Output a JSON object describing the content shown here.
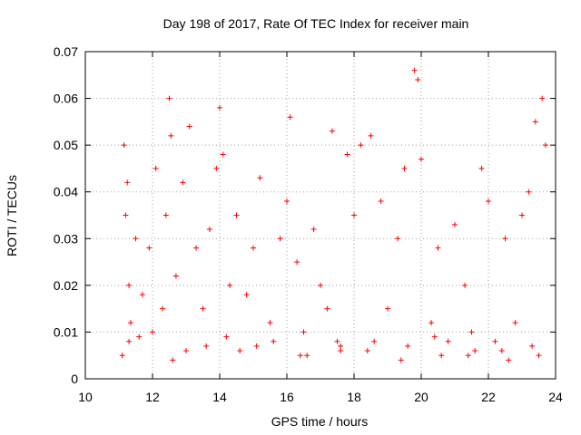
{
  "chart_data": {
    "type": "scatter",
    "title": "Day 198 of 2017, Rate Of TEC Index for receiver main",
    "xlabel": "GPS time / hours",
    "ylabel": "ROTI / TECUs",
    "xlim": [
      10,
      24
    ],
    "ylim": [
      0,
      0.07
    ],
    "x_ticks": [
      "10",
      "12",
      "14",
      "16",
      "18",
      "20",
      "22",
      "24"
    ],
    "y_ticks": [
      "0",
      "0.01",
      "0.02",
      "0.03",
      "0.04",
      "0.05",
      "0.06",
      "0.07"
    ],
    "grid": true,
    "marker": "plus",
    "series": [
      {
        "name": "ROTI",
        "color": "#ff0000",
        "x": [
          11.1,
          11.15,
          11.2,
          11.25,
          11.3,
          11.35,
          11.5,
          11.7,
          11.9,
          12.1,
          12.3,
          12.4,
          12.5,
          12.55,
          12.7,
          12.9,
          13.1,
          13.3,
          13.5,
          13.7,
          13.9,
          14.0,
          14.1,
          14.3,
          14.5,
          14.8,
          15.0,
          15.2,
          15.5,
          15.8,
          16.0,
          16.1,
          16.3,
          16.5,
          16.8,
          17.0,
          17.2,
          17.35,
          17.5,
          17.8,
          18.0,
          18.2,
          18.5,
          18.8,
          19.0,
          19.3,
          19.5,
          19.8,
          19.9,
          20.0,
          20.3,
          20.5,
          20.8,
          21.0,
          21.3,
          21.5,
          21.8,
          22.0,
          22.2,
          22.5,
          22.8,
          23.0,
          23.2,
          23.4,
          23.6,
          23.7,
          11.3,
          12.0,
          13.0,
          14.2,
          15.1,
          16.4,
          17.6,
          18.6,
          19.6,
          20.6,
          21.6,
          22.6,
          23.5,
          11.6,
          12.6,
          13.6,
          14.6,
          15.6,
          16.6,
          17.6,
          18.4,
          19.4,
          20.4,
          21.4,
          22.4,
          23.3
        ],
        "y": [
          0.005,
          0.05,
          0.035,
          0.042,
          0.02,
          0.012,
          0.03,
          0.018,
          0.028,
          0.045,
          0.015,
          0.035,
          0.06,
          0.052,
          0.022,
          0.042,
          0.054,
          0.028,
          0.015,
          0.032,
          0.045,
          0.058,
          0.048,
          0.02,
          0.035,
          0.018,
          0.028,
          0.043,
          0.012,
          0.03,
          0.038,
          0.056,
          0.025,
          0.01,
          0.032,
          0.02,
          0.015,
          0.053,
          0.008,
          0.048,
          0.035,
          0.05,
          0.052,
          0.038,
          0.015,
          0.03,
          0.045,
          0.066,
          0.064,
          0.047,
          0.012,
          0.028,
          0.008,
          0.033,
          0.02,
          0.01,
          0.045,
          0.038,
          0.008,
          0.03,
          0.012,
          0.035,
          0.04,
          0.055,
          0.06,
          0.05,
          0.008,
          0.01,
          0.006,
          0.009,
          0.007,
          0.005,
          0.006,
          0.008,
          0.007,
          0.005,
          0.006,
          0.004,
          0.005,
          0.009,
          0.004,
          0.007,
          0.006,
          0.008,
          0.005,
          0.007,
          0.006,
          0.004,
          0.009,
          0.005,
          0.006,
          0.007
        ]
      }
    ]
  }
}
